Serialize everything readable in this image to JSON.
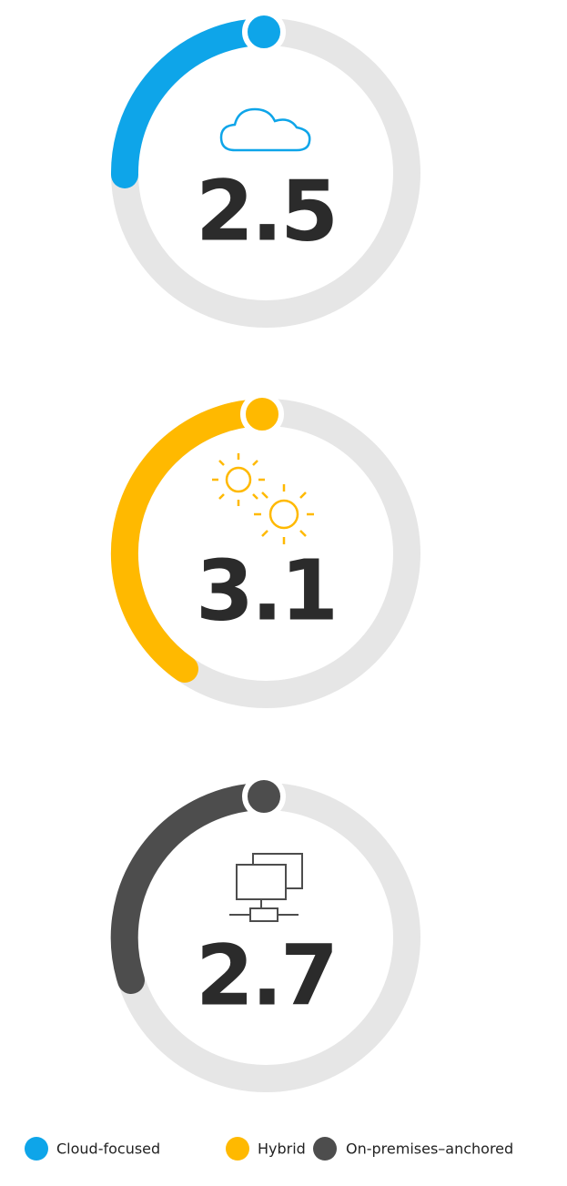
{
  "gauges": [
    {
      "value": "2.5",
      "label": "Cloud-focused"
    },
    {
      "value": "3.1",
      "label": "Hybrid"
    },
    {
      "value": "2.7",
      "label": "On-premises–anchored"
    }
  ]
}
